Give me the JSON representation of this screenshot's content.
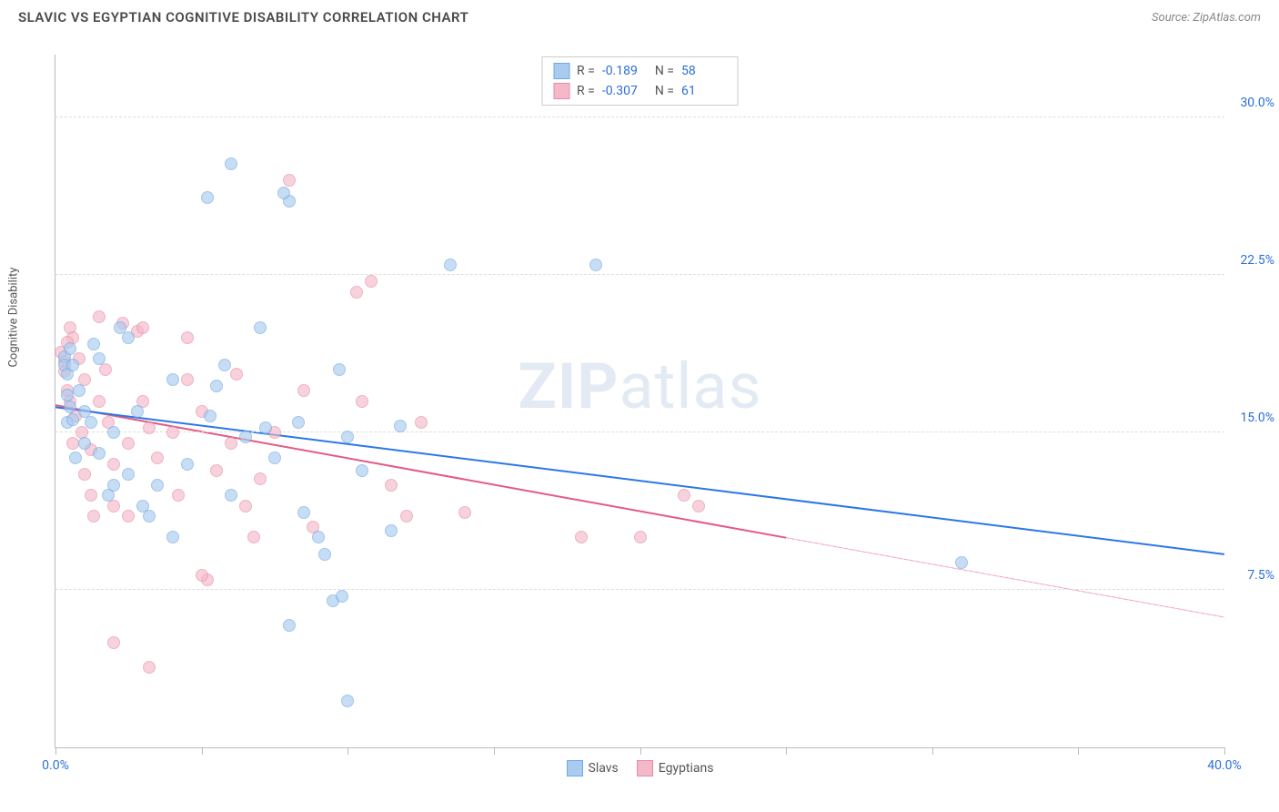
{
  "title": "SLAVIC VS EGYPTIAN COGNITIVE DISABILITY CORRELATION CHART",
  "source_label": "Source: ZipAtlas.com",
  "ylabel": "Cognitive Disability",
  "watermark_bold": "ZIP",
  "watermark_rest": "atlas",
  "chart": {
    "type": "scatter",
    "xlim": [
      0,
      40
    ],
    "ylim": [
      0,
      33
    ],
    "x_tick_positions": [
      0,
      5,
      10,
      15,
      20,
      25,
      30,
      35,
      40
    ],
    "x_tick_labels": {
      "0": "0.0%",
      "40": "40.0%"
    },
    "y_grid_positions": [
      7.5,
      15.0,
      22.5,
      30.0
    ],
    "y_tick_labels": [
      "7.5%",
      "15.0%",
      "22.5%",
      "30.0%"
    ],
    "background_color": "#ffffff",
    "grid_color": "#dddddd",
    "axis_color": "#bbbbbb",
    "tick_label_color": "#2b6fd8",
    "title_color": "#4a4a4a",
    "title_fontsize": 15,
    "label_fontsize": 13,
    "tick_fontsize": 14,
    "point_radius": 7,
    "point_opacity": 0.65
  },
  "series": {
    "slavs": {
      "label": "Slavs",
      "fill_color": "#a9cbef",
      "stroke_color": "#6fa9e4",
      "line_color": "#2b78e4",
      "r_label": "R =",
      "r_value": "-0.189",
      "n_label": "N =",
      "n_value": "58",
      "trend": {
        "x1": 0,
        "y1": 16.2,
        "x2": 40,
        "y2": 9.2,
        "dash_from_x": null
      },
      "points": [
        [
          0.3,
          18.6
        ],
        [
          0.3,
          18.2
        ],
        [
          0.4,
          17.8
        ],
        [
          0.4,
          16.8
        ],
        [
          0.5,
          19.0
        ],
        [
          0.6,
          18.2
        ],
        [
          0.4,
          15.5
        ],
        [
          0.6,
          15.6
        ],
        [
          0.5,
          16.2
        ],
        [
          1.0,
          16.0
        ],
        [
          1.2,
          15.5
        ],
        [
          2.8,
          16.0
        ],
        [
          1.0,
          14.5
        ],
        [
          1.5,
          14.0
        ],
        [
          2.0,
          12.5
        ],
        [
          2.5,
          13.0
        ],
        [
          3.0,
          11.5
        ],
        [
          1.5,
          18.5
        ],
        [
          4.0,
          17.5
        ],
        [
          5.3,
          15.8
        ],
        [
          5.5,
          17.2
        ],
        [
          2.2,
          20.0
        ],
        [
          6.5,
          14.8
        ],
        [
          7.0,
          20.0
        ],
        [
          6.0,
          27.8
        ],
        [
          5.8,
          18.2
        ],
        [
          5.2,
          26.2
        ],
        [
          8.0,
          26.0
        ],
        [
          7.8,
          26.4
        ],
        [
          9.7,
          18.0
        ],
        [
          10.0,
          14.8
        ],
        [
          10.5,
          13.2
        ],
        [
          8.5,
          11.2
        ],
        [
          9.0,
          10.0
        ],
        [
          9.2,
          9.2
        ],
        [
          8.0,
          5.8
        ],
        [
          9.5,
          7.0
        ],
        [
          9.8,
          7.2
        ],
        [
          10.0,
          2.2
        ],
        [
          11.5,
          10.3
        ],
        [
          11.8,
          15.3
        ],
        [
          13.5,
          23.0
        ],
        [
          18.5,
          23.0
        ],
        [
          1.8,
          12.0
        ],
        [
          3.5,
          12.5
        ],
        [
          3.2,
          11.0
        ],
        [
          4.0,
          10.0
        ],
        [
          4.5,
          13.5
        ],
        [
          6.0,
          12.0
        ],
        [
          2.5,
          19.5
        ],
        [
          7.2,
          15.2
        ],
        [
          7.5,
          13.8
        ],
        [
          8.3,
          15.5
        ],
        [
          31.0,
          8.8
        ],
        [
          0.8,
          17.0
        ],
        [
          1.3,
          19.2
        ],
        [
          0.7,
          13.8
        ],
        [
          2.0,
          15.0
        ]
      ]
    },
    "egyptians": {
      "label": "Egyptians",
      "fill_color": "#f3b9c8",
      "stroke_color": "#e88ba5",
      "line_color": "#e35a83",
      "r_label": "R =",
      "r_value": "-0.307",
      "n_label": "N =",
      "n_value": "61",
      "trend": {
        "x1": 0,
        "y1": 16.3,
        "x2": 40,
        "y2": 6.2,
        "dash_from_x": 25
      },
      "points": [
        [
          0.2,
          18.8
        ],
        [
          0.3,
          18.4
        ],
        [
          0.3,
          17.9
        ],
        [
          0.5,
          20.0
        ],
        [
          0.6,
          19.5
        ],
        [
          0.4,
          17.0
        ],
        [
          0.8,
          18.5
        ],
        [
          1.0,
          17.5
        ],
        [
          0.5,
          16.5
        ],
        [
          0.7,
          15.8
        ],
        [
          0.9,
          15.0
        ],
        [
          1.2,
          14.2
        ],
        [
          1.5,
          16.5
        ],
        [
          1.7,
          18.0
        ],
        [
          2.0,
          13.5
        ],
        [
          2.3,
          20.2
        ],
        [
          2.5,
          14.5
        ],
        [
          2.8,
          19.8
        ],
        [
          3.0,
          20.0
        ],
        [
          1.0,
          13.0
        ],
        [
          1.2,
          12.0
        ],
        [
          2.0,
          11.5
        ],
        [
          2.5,
          11.0
        ],
        [
          3.5,
          13.8
        ],
        [
          4.0,
          15.0
        ],
        [
          4.5,
          17.5
        ],
        [
          4.5,
          19.5
        ],
        [
          5.0,
          16.0
        ],
        [
          6.0,
          14.5
        ],
        [
          6.2,
          17.8
        ],
        [
          6.5,
          11.5
        ],
        [
          7.0,
          12.8
        ],
        [
          7.5,
          15.0
        ],
        [
          8.5,
          17.0
        ],
        [
          8.0,
          27.0
        ],
        [
          8.8,
          10.5
        ],
        [
          10.5,
          16.5
        ],
        [
          10.8,
          22.2
        ],
        [
          10.3,
          21.7
        ],
        [
          11.5,
          12.5
        ],
        [
          12.0,
          11.0
        ],
        [
          12.5,
          15.5
        ],
        [
          14.0,
          11.2
        ],
        [
          18.0,
          10.0
        ],
        [
          20.0,
          10.0
        ],
        [
          21.5,
          12.0
        ],
        [
          22.0,
          11.5
        ],
        [
          5.2,
          8.0
        ],
        [
          5.0,
          8.2
        ],
        [
          3.2,
          3.8
        ],
        [
          2.0,
          5.0
        ],
        [
          3.0,
          16.5
        ],
        [
          3.2,
          15.2
        ],
        [
          4.2,
          12.0
        ],
        [
          5.5,
          13.2
        ],
        [
          6.8,
          10.0
        ],
        [
          1.5,
          20.5
        ],
        [
          0.6,
          14.5
        ],
        [
          1.8,
          15.5
        ],
        [
          0.4,
          19.3
        ],
        [
          1.3,
          11.0
        ]
      ]
    }
  }
}
